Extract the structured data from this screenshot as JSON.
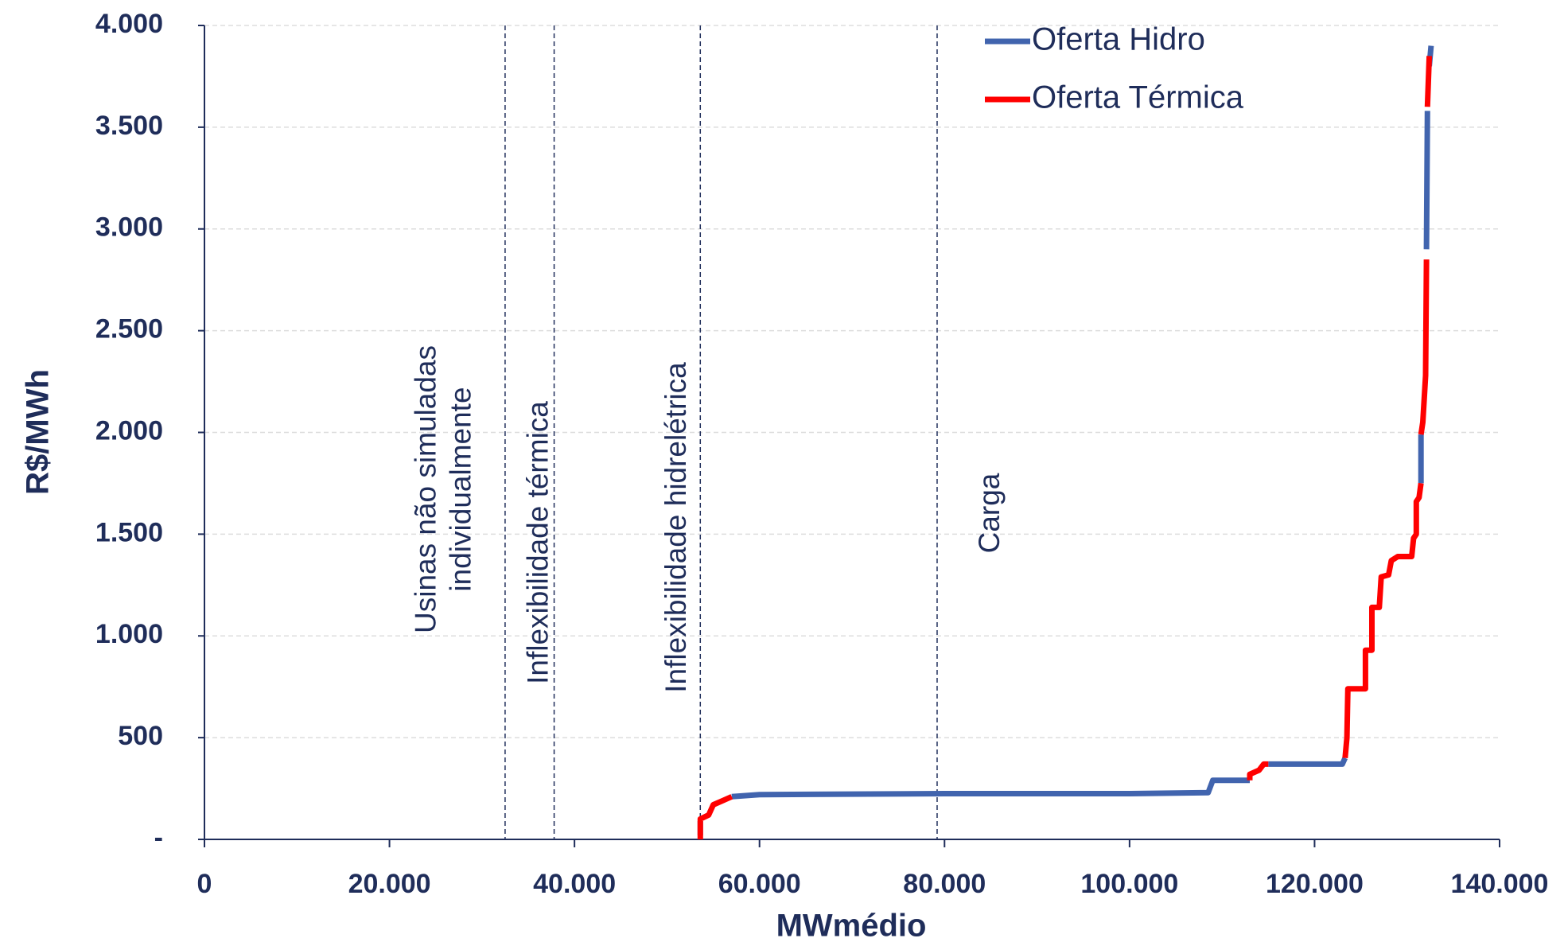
{
  "chart_data": {
    "type": "line",
    "xlabel": "MWmédio",
    "ylabel": "R$/MWh",
    "xlim": [
      0,
      140000
    ],
    "ylim": [
      0,
      4000
    ],
    "xticks": [
      0,
      {
        "value": 20000,
        "label": "20.000"
      },
      {
        "value": 40000,
        "label": "40.000"
      },
      {
        "value": 60000,
        "label": "60.000"
      },
      {
        "value": 80000,
        "label": "80.000"
      },
      {
        "value": 100000,
        "label": "100.000"
      },
      {
        "value": 120000,
        "label": "120.000"
      },
      {
        "value": 140000,
        "label": "140.000"
      }
    ],
    "yticks": [
      {
        "value": 0,
        "label": "-"
      },
      500,
      {
        "value": 1000,
        "label": "1.000"
      },
      {
        "value": 1500,
        "label": "1.500"
      },
      {
        "value": 2000,
        "label": "2.000"
      },
      {
        "value": 2500,
        "label": "2.500"
      },
      {
        "value": 3000,
        "label": "3.000"
      },
      {
        "value": 3500,
        "label": "3.500"
      },
      {
        "value": 4000,
        "label": "4.000"
      }
    ],
    "grid": true,
    "legend": "upper right",
    "series": [
      {
        "name": "Oferta Hidro",
        "color": "#4164ae",
        "x": [
          53600,
          53600,
          null,
          57000,
          60000,
          80000,
          100000,
          108500,
          109000,
          113000,
          null,
          115000,
          123000,
          123300,
          null,
          131500,
          131500,
          null,
          132100,
          132200,
          null,
          132400,
          132600
        ],
        "values": [
          20,
          90,
          null,
          210,
          220,
          225,
          225,
          230,
          290,
          290,
          null,
          370,
          370,
          400,
          null,
          1750,
          1990,
          null,
          2900,
          3580,
          null,
          3800,
          3900
        ]
      },
      {
        "name": "Oferta Térmica",
        "color": "#ff0000",
        "x": [
          53600,
          53600,
          54500,
          55000,
          56000,
          57000,
          null,
          113000,
          113000,
          114000,
          114500,
          115000,
          null,
          123300,
          123500,
          123600,
          125500,
          125500,
          126200,
          126200,
          127000,
          127200,
          128000,
          128300,
          129000,
          130500,
          130700,
          131000,
          131000,
          131300,
          131500,
          null,
          131500,
          131700,
          132000,
          132100,
          null,
          132200,
          132400
        ],
        "values": [
          0,
          100,
          120,
          170,
          190,
          210,
          null,
          290,
          320,
          340,
          370,
          370,
          null,
          400,
          500,
          740,
          740,
          930,
          930,
          1140,
          1140,
          1290,
          1300,
          1370,
          1390,
          1390,
          1480,
          1500,
          1660,
          1680,
          1750,
          null,
          1990,
          2050,
          2280,
          2850,
          null,
          3600,
          3850
        ]
      }
    ],
    "annotations": [
      {
        "x": 32500,
        "text": [
          "Usinas não simuladas",
          "individualmente"
        ]
      },
      {
        "x": 37800,
        "text": [
          "Inflexibilidade térmica"
        ]
      },
      {
        "x": 53600,
        "text": [
          "Inflexibilidade hidrelétrica"
        ]
      },
      {
        "x": 79200,
        "text": [
          "Carga"
        ]
      }
    ]
  }
}
